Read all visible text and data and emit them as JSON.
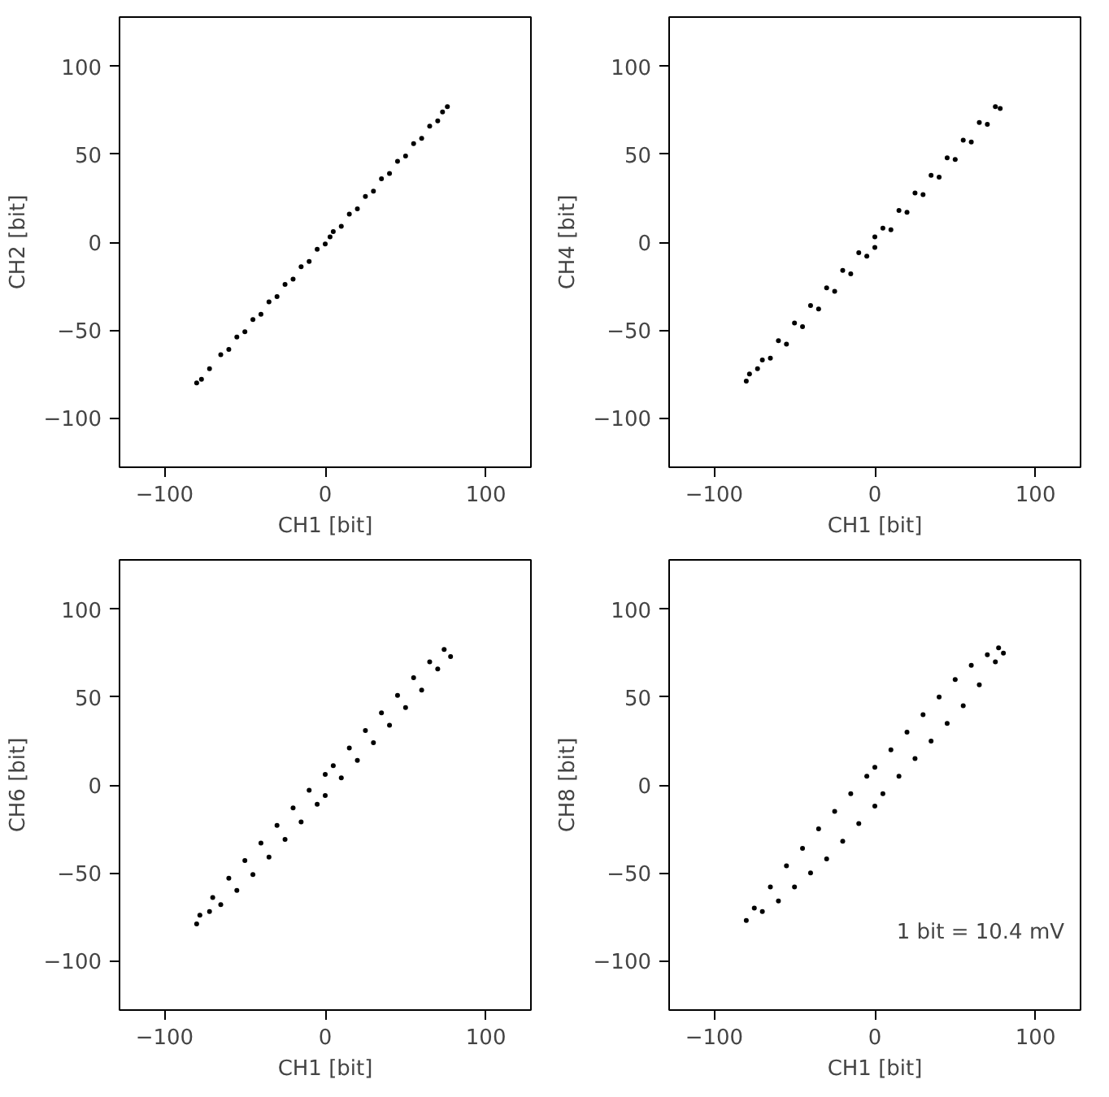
{
  "chart_data": [
    {
      "type": "scatter",
      "xlabel": "CH1 [bit]",
      "ylabel": "CH2 [bit]",
      "xlim": [
        -128,
        128
      ],
      "ylim": [
        -128,
        128
      ],
      "xticks": [
        -100,
        0,
        100
      ],
      "yticks": [
        -100,
        -50,
        0,
        50,
        100
      ],
      "grid": false,
      "marker": "circle",
      "color": "#000000",
      "x": [
        -80,
        -77,
        -72,
        -65,
        -60,
        -55,
        -50,
        -45,
        -40,
        -35,
        -30,
        -25,
        -20,
        -15,
        -10,
        -5,
        0,
        3,
        5,
        10,
        15,
        20,
        25,
        30,
        35,
        40,
        45,
        50,
        55,
        60,
        65,
        70,
        73,
        76
      ],
      "values": [
        -80,
        -78,
        -72,
        -64,
        -61,
        -54,
        -51,
        -44,
        -41,
        -34,
        -31,
        -24,
        -21,
        -14,
        -11,
        -4,
        -1,
        3,
        6,
        9,
        16,
        19,
        26,
        29,
        36,
        39,
        46,
        49,
        56,
        59,
        66,
        69,
        74,
        77
      ]
    },
    {
      "type": "scatter",
      "xlabel": "CH1 [bit]",
      "ylabel": "CH4 [bit]",
      "xlim": [
        -128,
        128
      ],
      "ylim": [
        -128,
        128
      ],
      "xticks": [
        -100,
        0,
        100
      ],
      "yticks": [
        -100,
        -50,
        0,
        50,
        100
      ],
      "grid": false,
      "marker": "circle",
      "color": "#000000",
      "x": [
        -80,
        -78,
        -73,
        -70,
        -65,
        -60,
        -55,
        -50,
        -45,
        -40,
        -35,
        -30,
        -25,
        -20,
        -15,
        -10,
        -5,
        0,
        0,
        5,
        10,
        15,
        20,
        25,
        30,
        35,
        40,
        45,
        50,
        55,
        60,
        65,
        70,
        75,
        78
      ],
      "values": [
        -79,
        -75,
        -72,
        -67,
        -66,
        -56,
        -58,
        -46,
        -48,
        -36,
        -38,
        -26,
        -28,
        -16,
        -18,
        -6,
        -8,
        3,
        -3,
        8,
        7,
        18,
        17,
        28,
        27,
        38,
        37,
        48,
        47,
        58,
        57,
        68,
        67,
        77,
        76
      ]
    },
    {
      "type": "scatter",
      "xlabel": "CH1 [bit]",
      "ylabel": "CH6 [bit]",
      "xlim": [
        -128,
        128
      ],
      "ylim": [
        -128,
        128
      ],
      "xticks": [
        -100,
        0,
        100
      ],
      "yticks": [
        -100,
        -50,
        0,
        50,
        100
      ],
      "grid": false,
      "marker": "circle",
      "color": "#000000",
      "x": [
        -80,
        -78,
        -72,
        -70,
        -65,
        -60,
        -55,
        -50,
        -45,
        -40,
        -35,
        -30,
        -25,
        -20,
        -15,
        -10,
        -5,
        0,
        0,
        5,
        10,
        15,
        20,
        25,
        30,
        35,
        40,
        45,
        50,
        55,
        60,
        65,
        70,
        74,
        78
      ],
      "values": [
        -79,
        -74,
        -72,
        -64,
        -68,
        -53,
        -60,
        -43,
        -51,
        -33,
        -41,
        -23,
        -31,
        -13,
        -21,
        -3,
        -11,
        6,
        -6,
        11,
        4,
        21,
        14,
        31,
        24,
        41,
        34,
        51,
        44,
        61,
        54,
        70,
        66,
        77,
        73
      ]
    },
    {
      "type": "scatter",
      "xlabel": "CH1 [bit]",
      "ylabel": "CH8 [bit]",
      "xlim": [
        -128,
        128
      ],
      "ylim": [
        -128,
        128
      ],
      "xticks": [
        -100,
        0,
        100
      ],
      "yticks": [
        -100,
        -50,
        0,
        50,
        100
      ],
      "grid": false,
      "marker": "circle",
      "color": "#000000",
      "annotations": [
        "1 bit = 10.4 mV"
      ],
      "x": [
        -80,
        -75,
        -70,
        -65,
        -60,
        -55,
        -50,
        -45,
        -40,
        -35,
        -30,
        -25,
        -20,
        -15,
        -10,
        -5,
        0,
        0,
        5,
        10,
        15,
        20,
        25,
        30,
        35,
        40,
        45,
        50,
        55,
        60,
        65,
        70,
        75,
        77,
        80
      ],
      "values": [
        -77,
        -70,
        -72,
        -58,
        -66,
        -46,
        -58,
        -36,
        -50,
        -25,
        -42,
        -15,
        -32,
        -5,
        -22,
        5,
        -12,
        10,
        -5,
        20,
        5,
        30,
        15,
        40,
        25,
        50,
        35,
        60,
        45,
        68,
        57,
        74,
        70,
        78,
        75
      ]
    }
  ]
}
